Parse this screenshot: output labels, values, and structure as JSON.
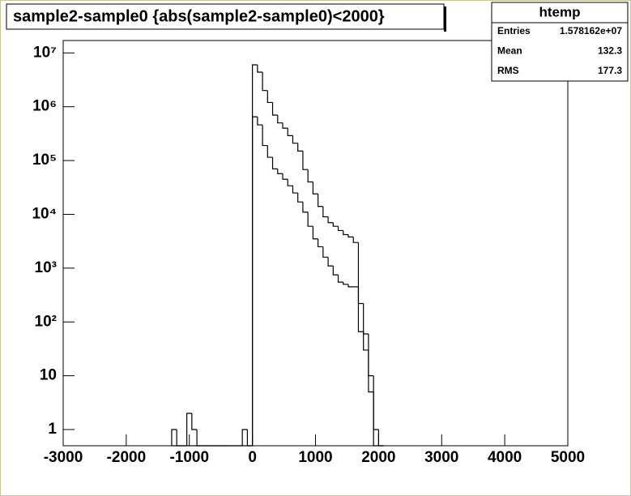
{
  "chart_data": {
    "type": "histogram",
    "title": "sample2-sample0 {abs(sample2-sample0)<2000}",
    "log_y": true,
    "xlim": [
      -3000,
      5000
    ],
    "xticks": [
      -3000,
      -2000,
      -1000,
      0,
      1000,
      2000,
      3000,
      4000,
      5000
    ],
    "ylim": [
      0.5,
      17000000
    ],
    "yticks": [
      1,
      10,
      {
        "value": 100,
        "label": "10²"
      },
      {
        "value": 1000,
        "label": "10³"
      },
      {
        "value": 10000,
        "label": "10⁴"
      },
      {
        "value": 100000,
        "label": "10⁵"
      },
      {
        "value": 1000000,
        "label": "10⁶"
      },
      {
        "value": 10000000,
        "label": "10⁷"
      }
    ],
    "bins": [
      -1280,
      -1200,
      -1120,
      -1040,
      -960,
      -880,
      -800,
      -720,
      -640,
      -560,
      -480,
      -400,
      -320,
      -240,
      -160,
      -80,
      0,
      80,
      160,
      240,
      320,
      400,
      480,
      560,
      640,
      720,
      800,
      880,
      960,
      1040,
      1120,
      1200,
      1280,
      1360,
      1440,
      1520,
      1600,
      1680,
      1760,
      1840,
      1920,
      2000,
      2080
    ],
    "series": [
      {
        "color": "#000000",
        "values": [
          1,
          0,
          0,
          2,
          1,
          0,
          0,
          0,
          0,
          0,
          0,
          0,
          0,
          0,
          1,
          0,
          6000000,
          4400000,
          2000000,
          1200000,
          700000,
          500000,
          400000,
          290000,
          210000,
          150000,
          68000,
          40000,
          24000,
          14000,
          9000,
          7000,
          6000,
          5000,
          4200,
          3800,
          3000,
          66,
          30,
          10,
          1,
          0
        ]
      },
      {
        "color": "#000000",
        "values": [
          0,
          0,
          0,
          0,
          0,
          0,
          0,
          0,
          0,
          0,
          0,
          0,
          0,
          0,
          0,
          0,
          650000,
          460000,
          190000,
          115000,
          70000,
          57000,
          45000,
          34000,
          25000,
          17000,
          11000,
          6000,
          3500,
          2500,
          1600,
          1100,
          750,
          550,
          500,
          450,
          450,
          220,
          60,
          5,
          0,
          0
        ]
      }
    ],
    "stats": {
      "title": "htemp",
      "rows": [
        [
          "Entries",
          "1.578162e+07"
        ],
        [
          "Mean",
          "132.3"
        ],
        [
          "RMS",
          "177.3"
        ]
      ]
    }
  }
}
